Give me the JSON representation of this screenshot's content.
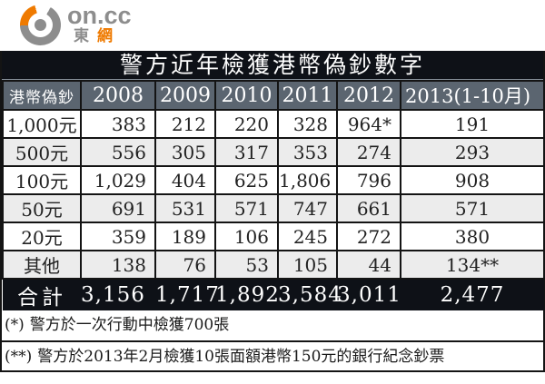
{
  "logo": {
    "brand": "on.cc",
    "tagline_char1": "東",
    "tagline_char2": "網"
  },
  "chart_data": {
    "type": "table",
    "title": "警方近年檢獲港幣偽鈔數字",
    "columns": [
      "港幣偽鈔",
      "2008",
      "2009",
      "2010",
      "2011",
      "2012",
      "2013(1-10月)"
    ],
    "rows": [
      {
        "label": "1,000元",
        "values": [
          "383",
          "212",
          "220",
          "328",
          "964*",
          "191"
        ]
      },
      {
        "label": "500元",
        "values": [
          "556",
          "305",
          "317",
          "353",
          "274",
          "293"
        ]
      },
      {
        "label": "100元",
        "values": [
          "1,029",
          "404",
          "625",
          "1,806",
          "796",
          "908"
        ]
      },
      {
        "label": "50元",
        "values": [
          "691",
          "531",
          "571",
          "747",
          "661",
          "571"
        ]
      },
      {
        "label": "20元",
        "values": [
          "359",
          "189",
          "106",
          "245",
          "272",
          "380"
        ]
      },
      {
        "label": "其他",
        "values": [
          "138",
          "76",
          "53",
          "105",
          "44",
          "134**"
        ]
      }
    ],
    "total": {
      "label": "合計",
      "values": [
        "3,156",
        "1,717",
        "1,892",
        "3,584",
        "3,011",
        "2,477"
      ]
    },
    "layout_hints": {
      "zebra_striping": true,
      "header_row": true,
      "total_row": true
    }
  },
  "footnotes": [
    {
      "marker": "(*)",
      "text": "警方於一次行動中檢獲700張"
    },
    {
      "marker": "(**)",
      "text": "警方於2013年2月檢獲10張面額港幣150元的銀行紀念鈔票"
    }
  ],
  "colors": {
    "accent_orange": "#ef7a00",
    "title_bar_bg": "#0e1117",
    "header_bg": "#5b6570",
    "row_alt_bg": "#ececec",
    "total_bar_bg": "#0e1117",
    "border": "#141414",
    "logo_gray": "#8d8d8d"
  }
}
